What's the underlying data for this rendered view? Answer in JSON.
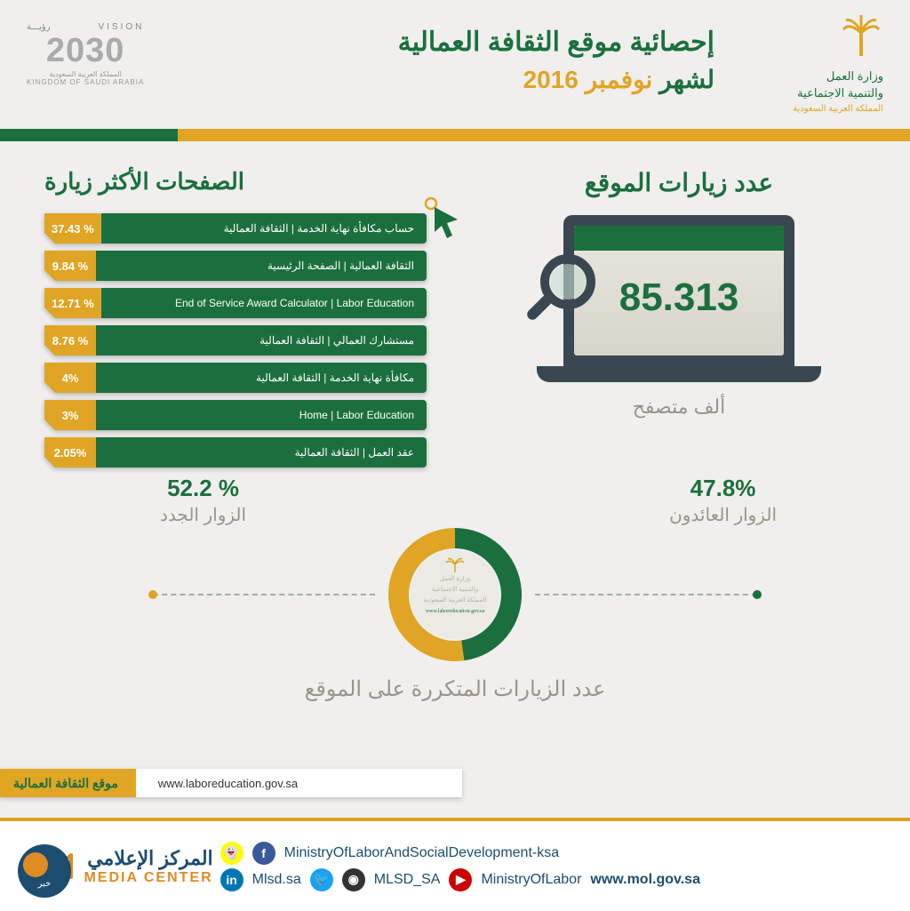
{
  "header": {
    "ministry": {
      "line1": "وزارة العمل",
      "line2": "والتنمية الاجتماعية",
      "line3": "المملكة العربية السعودية"
    },
    "title_main": "إحصائية موقع الثقافة العمالية",
    "title_sub_prefix": "لشهر",
    "title_date": "نوفمبر 2016",
    "vision": {
      "top_ar": "رؤيـــة",
      "top_en": "VISION",
      "year": "2030",
      "sub_ar": "المملكة العربية السعودية",
      "sub_en": "KINGDOM OF SAUDI ARABIA"
    }
  },
  "colors": {
    "green": "#1b6f3e",
    "gold": "#e0a524",
    "dark_slate": "#3a4750",
    "muted": "#9a9488",
    "bg": "#f0efed"
  },
  "visits": {
    "title": "عدد زيارات الموقع",
    "count": "85.313",
    "caption": "ألف متصفح"
  },
  "top_pages": {
    "title": "الصفحات الأكثر زيارة",
    "rows": [
      {
        "pct": "37.43 %",
        "label": "حساب مكافأة نهاية الخدمة | الثقافة العمالية"
      },
      {
        "pct": "9.84 %",
        "label": "الثقافة العمالية | الصفحة الرئيسية"
      },
      {
        "pct": "12.71 %",
        "label": "End of Service Award Calculator | Labor Education"
      },
      {
        "pct": "8.76 %",
        "label": "مستشارك العمالي | الثقافة العمالية"
      },
      {
        "pct": "4%",
        "label": "مكافأة نهاية الخدمة | الثقافة العمالية"
      },
      {
        "pct": "3%",
        "label": "Home | Labor Education"
      },
      {
        "pct": "2.05%",
        "label": "عقد العمل | الثقافة العمالية"
      }
    ]
  },
  "donut": {
    "title": "عدد الزيارات المتكررة على الموقع",
    "returning": {
      "pct": "47.8%",
      "label": "الزوار العائدون",
      "value": 47.8,
      "color": "#1b6f3e"
    },
    "new_v": {
      "pct": "52.2 %",
      "label": "الزوار الجدد",
      "value": 52.2,
      "color": "#e0a524"
    },
    "center_lines": [
      "وزارة العمل",
      "والتنمية الاجتماعية",
      "المملكة العربية السعودية",
      "www.laboreducation.gov.sa"
    ],
    "radius_outer": 75,
    "radius_inner": 52
  },
  "url_strip": {
    "label": "موقع الثقافة العمالية",
    "url": "www.laboreducation.gov.sa"
  },
  "footer": {
    "social": {
      "line1": "MinistryOfLaborAndSocialDevelopment-ksa",
      "line2_a": "Mlsd.sa",
      "line2_b": "MLSD_SA",
      "line2_c": "MinistryOfLabor",
      "site": "www.mol.gov.sa"
    },
    "media_center": {
      "ar": "المركز الإعلامي",
      "en": "MEDIA CENTER"
    }
  }
}
